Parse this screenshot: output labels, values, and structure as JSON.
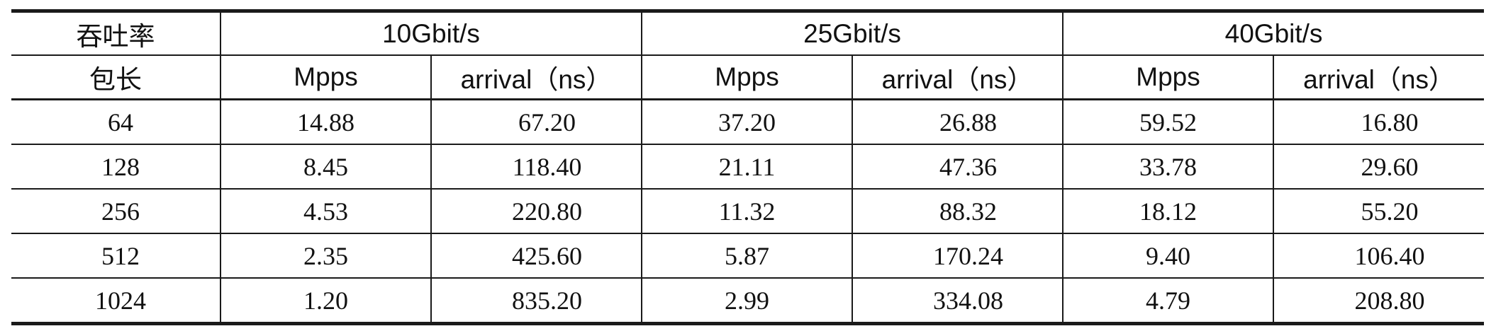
{
  "table": {
    "header_row1": {
      "corner": "吞吐率",
      "groups": [
        "10Gbit/s",
        "25Gbit/s",
        "40Gbit/s"
      ]
    },
    "header_row2": {
      "corner": "包长",
      "sub": [
        "Mpps",
        "arrival（ns）",
        "Mpps",
        "arrival（ns）",
        "Mpps",
        "arrival（ns）"
      ]
    },
    "rows": [
      [
        "64",
        "14.88",
        "67.20",
        "37.20",
        "26.88",
        "59.52",
        "16.80"
      ],
      [
        "128",
        "8.45",
        "118.40",
        "21.11",
        "47.36",
        "33.78",
        "29.60"
      ],
      [
        "256",
        "4.53",
        "220.80",
        "11.32",
        "88.32",
        "18.12",
        "55.20"
      ],
      [
        "512",
        "2.35",
        "425.60",
        "5.87",
        "170.24",
        "9.40",
        "106.40"
      ],
      [
        "1024",
        "1.20",
        "835.20",
        "2.99",
        "334.08",
        "4.79",
        "208.80"
      ]
    ]
  }
}
